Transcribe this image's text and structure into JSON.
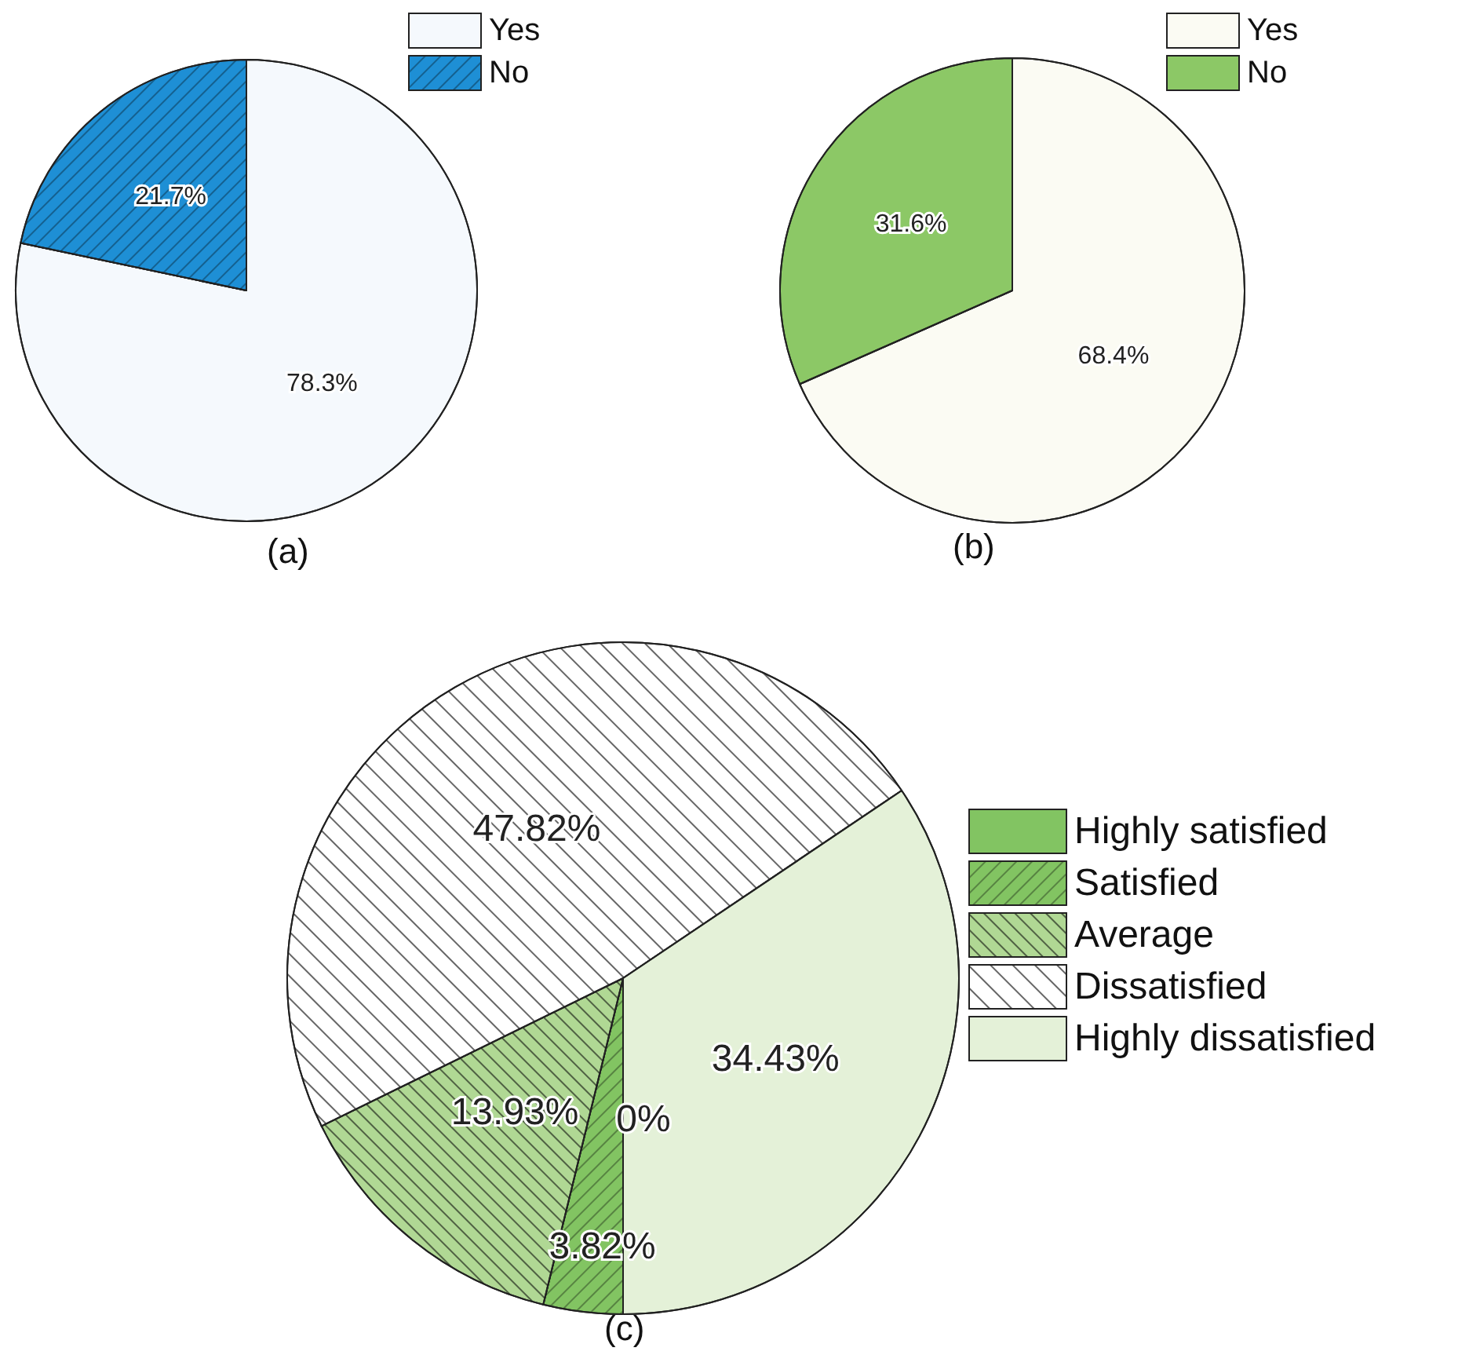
{
  "chart_data": [
    {
      "type": "pie",
      "title": "(a)",
      "categories": [
        "Yes",
        "No"
      ],
      "values": [
        78.3,
        21.7
      ],
      "colors": [
        "#f5f9fd",
        "#1e8fd5"
      ],
      "value_labels": [
        "78.3%",
        "21.7%"
      ],
      "legend": "top right"
    },
    {
      "type": "pie",
      "title": "(b)",
      "categories": [
        "Yes",
        "No"
      ],
      "values": [
        68.4,
        31.6
      ],
      "colors": [
        "#fbfbf3",
        "#8cc866"
      ],
      "value_labels": [
        "68.4%",
        "31.6%"
      ],
      "legend": "top right"
    },
    {
      "type": "pie",
      "title": "(c)",
      "categories": [
        "Highly satisfied",
        "Satisfied",
        "Average",
        "Dissatisfied",
        "Highly dissatisfied"
      ],
      "values": [
        0,
        3.82,
        13.93,
        47.82,
        34.43
      ],
      "colors": [
        "#82c462",
        "#82c462",
        "#b0d894",
        "#ffffff",
        "#e4f1d8"
      ],
      "value_labels": [
        "0%",
        "3.82%",
        "13.93%",
        "47.82%",
        "34.43%"
      ],
      "legend": "right"
    }
  ]
}
